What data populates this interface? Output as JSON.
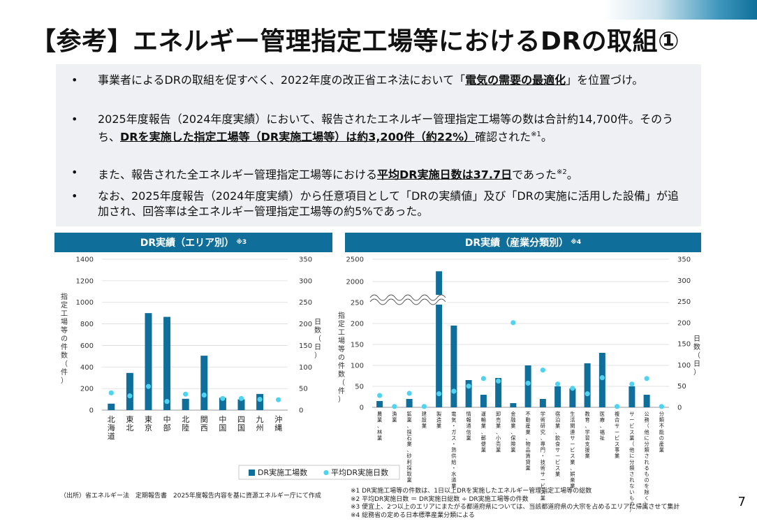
{
  "title": "【参考】エネルギー管理指定工場等におけるDRの取組①",
  "bullets": [
    {
      "pre": "事業者によるDRの取組を促すべく、2022年度の改正省エネ法において「",
      "em": "電気の需要の最適化",
      "post": "」を位置づけ。"
    },
    {
      "pre": "2025年度報告（2024年度実績）において、報告されたエネルギー管理指定工場等の数は合計約14,700件。そのうち、",
      "em": "DRを実施した指定工場等（DR実施工場等）は約3,200件（約22%）",
      "post": "確認された",
      "sup": "※1",
      "tail": "。"
    },
    {
      "pre": "また、報告された全エネルギー管理指定工場等における",
      "em": "平均DR実施日数は37.7日",
      "post": "であった",
      "sup": "※2",
      "tail": "。"
    },
    {
      "pre": "なお、2025年度報告（2024年度実績）から任意項目として「DRの実績値」及び「DRの実施に活用した設備」が追加され、回答率は全エネルギー管理指定工場等の約5%であった。"
    }
  ],
  "bullet_symbol": "•",
  "colors": {
    "bar": "#106e9a",
    "dot": "#4fd3f0",
    "header": "#106e9a"
  },
  "chart_data": [
    {
      "type": "bar",
      "title": "DR実績（エリア別）",
      "title_note": "※3",
      "categories": [
        "北海道",
        "東北",
        "東京",
        "中部",
        "北陸",
        "関西",
        "中国",
        "四国",
        "九州",
        "沖縄"
      ],
      "series": [
        {
          "name": "DR実施工場数",
          "type": "bar",
          "axis": "left",
          "values": [
            60,
            345,
            900,
            865,
            105,
            505,
            115,
            100,
            150,
            0
          ]
        },
        {
          "name": "平均DR実施日数",
          "type": "scatter",
          "axis": "right",
          "values": [
            40,
            33,
            55,
            20,
            37,
            35,
            27,
            27,
            25,
            24
          ]
        }
      ],
      "ylabel": "指定工場等の件数（件）",
      "y2label": "日数（日）",
      "ylim": [
        0,
        1400
      ],
      "y2lim": [
        0,
        350
      ],
      "yticks": [
        "1400",
        "1200",
        "1000",
        "800",
        "600",
        "400",
        "200",
        "0"
      ],
      "y2ticks": [
        "350",
        "300",
        "250",
        "200",
        "150",
        "100",
        "50",
        "0"
      ]
    },
    {
      "type": "bar",
      "title": "DR実績（産業分類別）",
      "title_note": "※4",
      "categories": [
        "農業、林業",
        "漁業",
        "鉱業、採石業、砂利採取業",
        "建設業",
        "製造業",
        "電気・ガス・熱供給・水道業",
        "情報通信業",
        "運輸業、郵便業",
        "卸売業、小売業",
        "金融業、保険業",
        "不動産業、物品賃貸業",
        "学術研究、専門・技術サービス業",
        "宿泊業、飲食サービス業",
        "生活関連サービス業、娯楽業",
        "教育、学習支援業",
        "医療、福祉",
        "複合サービス事業",
        "サービス業（他に分類されないもの）",
        "公務（他に分類されるものを除く）",
        "分類不能の産業"
      ],
      "series": [
        {
          "name": "DR実施工場数",
          "type": "bar",
          "axis": "left",
          "values": [
            15,
            0,
            20,
            0,
            2230,
            195,
            65,
            30,
            70,
            10,
            100,
            20,
            50,
            45,
            105,
            130,
            0,
            50,
            30,
            0
          ]
        },
        {
          "name": "平均DR実施日数",
          "type": "scatter",
          "axis": "right",
          "values": [
            28,
            2,
            33,
            2,
            32,
            38,
            50,
            68,
            62,
            200,
            57,
            88,
            55,
            45,
            32,
            70,
            2,
            55,
            68,
            2
          ]
        }
      ],
      "ylabel": "指定工場等の件数（件）",
      "y2label": "日数（日）",
      "ylim": [
        0,
        2500
      ],
      "axis_break": [
        250,
        2000
      ],
      "y2lim": [
        0,
        350
      ],
      "yticks": [
        "2500",
        "2000",
        "250",
        "200",
        "150",
        "100",
        "50",
        "0"
      ],
      "y2ticks": [
        "350",
        "300",
        "250",
        "200",
        "150",
        "100",
        "50",
        "0"
      ]
    }
  ],
  "legend": {
    "bar_label": "DR実施工場数",
    "dot_label": "平均DR実施日数"
  },
  "source": "（出所）省エネルギー法　定期報告書　2025年度報告内容を基に資源エネルギー庁にて作成",
  "notes": [
    "※1 DR実施工場等の件数は、1日以上DRを実施したエネルギー管理指定工場等の総数",
    "※2 平均DR実施日数 ＝ DR実施日総数 ÷ DR実施工場等の件数",
    "※3 便宜上、2つ以上のエリアにまたがる都道府県については、当該都道府県の大宗を占めるエリアに帰属させて集計",
    "※4 総務省の定める日本標準産業分類による"
  ],
  "page_number": "7"
}
